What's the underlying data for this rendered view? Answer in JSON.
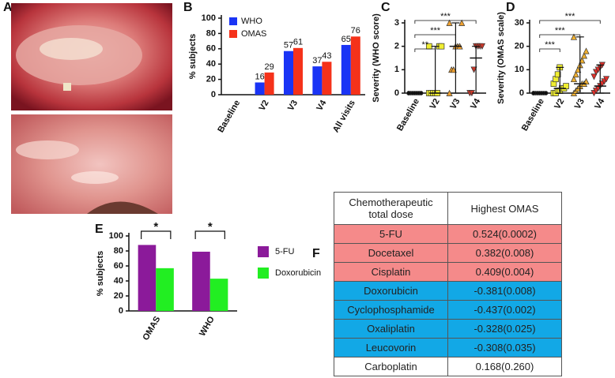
{
  "figure_a": {
    "label": "A"
  },
  "chart_data": [
    {
      "type": "bar",
      "label": "B",
      "ylabel": "% subjects",
      "categories": [
        "Baseline",
        "V2",
        "V3",
        "V4",
        "All visits"
      ],
      "series": [
        {
          "name": "WHO",
          "color": "#1a34f5",
          "values": [
            0,
            16,
            57,
            37,
            65
          ]
        },
        {
          "name": "OMAS",
          "color": "#f5321a",
          "values": [
            0,
            29,
            61,
            43,
            76
          ]
        }
      ],
      "ylim": [
        0,
        100
      ],
      "yticks": [
        0,
        20,
        40,
        60,
        80,
        100
      ],
      "show_values": true,
      "legend": "top-left"
    },
    {
      "type": "dot",
      "label": "C",
      "ylabel": "Severity (WHO score)",
      "categories": [
        "Baseline",
        "V2",
        "V3",
        "V4"
      ],
      "colors": [
        "#111111",
        "#f0ee30",
        "#eea030",
        "#c8392b"
      ],
      "markers": [
        "circle",
        "square",
        "triangle",
        "triangle-down"
      ],
      "points": [
        [
          0,
          0,
          0,
          0,
          0,
          0,
          0,
          0
        ],
        [
          0,
          0,
          0,
          0,
          0,
          2,
          2,
          2
        ],
        [
          0,
          1,
          1,
          2,
          2,
          2,
          3,
          3
        ],
        [
          0,
          0,
          1,
          2,
          2,
          2,
          2
        ]
      ],
      "centers": [
        0,
        0,
        2,
        1.5
      ],
      "ranges": [
        [
          0,
          0
        ],
        [
          0,
          2
        ],
        [
          0,
          3
        ],
        [
          0,
          2
        ]
      ],
      "annotations": [
        "**",
        "***",
        "***"
      ],
      "ylim": [
        0,
        3
      ],
      "yticks": [
        0,
        1,
        2,
        3
      ]
    },
    {
      "type": "dot",
      "label": "D",
      "ylabel": "Severity (OMAS scale)",
      "categories": [
        "Baseline",
        "V2",
        "V3",
        "V4"
      ],
      "colors": [
        "#111111",
        "#f0ee30",
        "#f0b030",
        "#e0302a"
      ],
      "markers": [
        "circle",
        "square",
        "triangle",
        "triangle-down"
      ],
      "points": [
        [
          0,
          0,
          0,
          0,
          0,
          0,
          0,
          0
        ],
        [
          0,
          0,
          1,
          1,
          2,
          2,
          3,
          4,
          6,
          8,
          11
        ],
        [
          0,
          1,
          2,
          3,
          4,
          4,
          5,
          6,
          8,
          10,
          12,
          14,
          16,
          18,
          24
        ],
        [
          0,
          1,
          2,
          3,
          4,
          5,
          6,
          7,
          9,
          10,
          11,
          12
        ]
      ],
      "centers": [
        0,
        2,
        4,
        3
      ],
      "ranges": [
        [
          0,
          0
        ],
        [
          0,
          11
        ],
        [
          0,
          24
        ],
        [
          0,
          12
        ]
      ],
      "annotations": [
        "***",
        "***",
        "***"
      ],
      "ylim": [
        0,
        30
      ],
      "yticks": [
        0,
        10,
        20,
        30
      ]
    },
    {
      "type": "bar",
      "label": "E",
      "ylabel": "% subjects",
      "categories": [
        "OMAS",
        "WHO"
      ],
      "series": [
        {
          "name": "5-FU",
          "color": "#8b1a9a",
          "values": [
            88,
            79
          ]
        },
        {
          "name": "Doxorubicin",
          "color": "#22ee22",
          "values": [
            57,
            43
          ]
        }
      ],
      "annotations": [
        "*",
        "*"
      ],
      "ylim": [
        0,
        100
      ],
      "yticks": [
        0,
        20,
        40,
        60,
        80,
        100
      ],
      "show_values": false,
      "legend": "right"
    }
  ],
  "table": {
    "label": "F",
    "header": [
      "Chemotherapeutic total dose",
      "Highest OMAS"
    ],
    "rows": [
      [
        "5-FU",
        "0.524(0.0002)"
      ],
      [
        "Docetaxel",
        "0.382(0.008)"
      ],
      [
        "Cisplatin",
        "0.409(0.004)"
      ],
      [
        "Doxorubicin",
        "-0.381(0.008)"
      ],
      [
        "Cyclophosphamide",
        "-0.437(0.002)"
      ],
      [
        "Oxaliplatin",
        "-0.328(0.025)"
      ],
      [
        "Leucovorin",
        "-0.308(0.035)"
      ],
      [
        "Carboplatin",
        "0.168(0.260)"
      ]
    ],
    "row_colors": [
      "#f58a8a",
      "#f58a8a",
      "#f58a8a",
      "#12a8e6",
      "#12a8e6",
      "#12a8e6",
      "#12a8e6",
      "#ffffff"
    ]
  }
}
